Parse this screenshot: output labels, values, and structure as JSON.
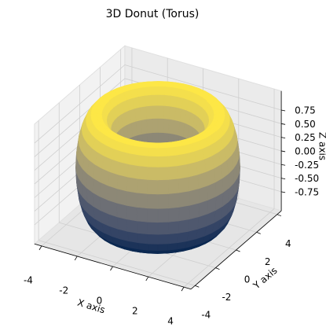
{
  "chart_data": {
    "type": "surface3d",
    "title": "3D Donut (Torus)",
    "x_label": "X axis",
    "y_label": "Y axis",
    "z_label": "Z axis",
    "surface": "torus",
    "major_radius": 3,
    "minor_radius": 1,
    "colormap": "cividis",
    "xlim": [
      -4.4,
      4.4
    ],
    "ylim": [
      -4.4,
      4.4
    ],
    "zlim": [
      -1.1,
      1.1
    ],
    "xticks": [
      -4,
      -2,
      0,
      2,
      4
    ],
    "yticks": [
      -4,
      -2,
      0,
      2,
      4
    ],
    "zticks": [
      -0.75,
      {
        "value": -0.5,
        "label": "-0.50"
      },
      -0.25,
      {
        "value": 0,
        "label": "0.00"
      },
      0.25,
      {
        "value": 0.5,
        "label": "0.50"
      },
      0.75
    ],
    "grid": true
  }
}
